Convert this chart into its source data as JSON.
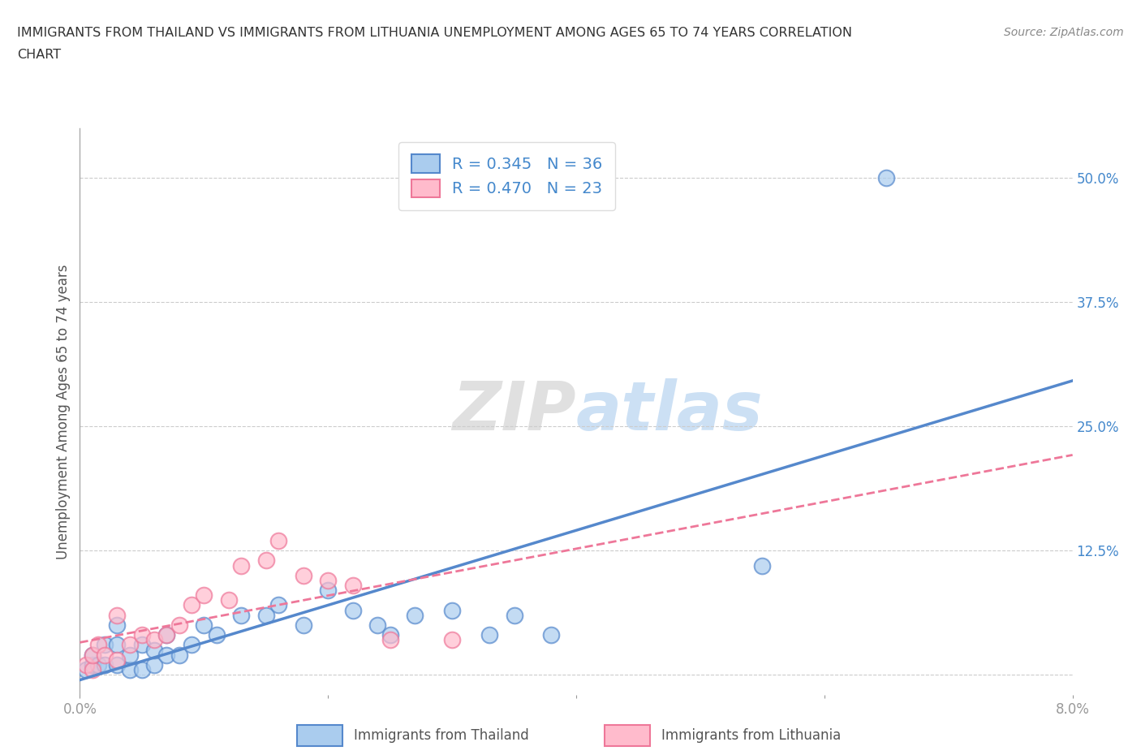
{
  "title": "IMMIGRANTS FROM THAILAND VS IMMIGRANTS FROM LITHUANIA UNEMPLOYMENT AMONG AGES 65 TO 74 YEARS CORRELATION\nCHART",
  "source_text": "Source: ZipAtlas.com",
  "ylabel": "Unemployment Among Ages 65 to 74 years",
  "xlim": [
    0.0,
    0.08
  ],
  "ylim": [
    -0.02,
    0.55
  ],
  "xticks": [
    0.0,
    0.02,
    0.04,
    0.06,
    0.08
  ],
  "ytick_positions": [
    0.0,
    0.125,
    0.25,
    0.375,
    0.5
  ],
  "background_color": "#ffffff",
  "grid_color": "#cccccc",
  "thailand_color": "#aaccee",
  "thailand_edge": "#5588cc",
  "lithuania_color": "#ffbbcc",
  "lithuania_edge": "#ee7799",
  "thailand_R": 0.345,
  "thailand_N": 36,
  "lithuania_R": 0.47,
  "lithuania_N": 23,
  "thailand_x": [
    0.0005,
    0.001,
    0.001,
    0.0015,
    0.002,
    0.002,
    0.003,
    0.003,
    0.003,
    0.004,
    0.004,
    0.005,
    0.005,
    0.006,
    0.006,
    0.007,
    0.007,
    0.008,
    0.009,
    0.01,
    0.011,
    0.013,
    0.015,
    0.016,
    0.018,
    0.02,
    0.022,
    0.024,
    0.025,
    0.027,
    0.03,
    0.033,
    0.035,
    0.038,
    0.055,
    0.065
  ],
  "thailand_y": [
    0.005,
    0.01,
    0.02,
    0.01,
    0.01,
    0.03,
    0.01,
    0.03,
    0.05,
    0.005,
    0.02,
    0.005,
    0.03,
    0.01,
    0.025,
    0.02,
    0.04,
    0.02,
    0.03,
    0.05,
    0.04,
    0.06,
    0.06,
    0.07,
    0.05,
    0.085,
    0.065,
    0.05,
    0.04,
    0.06,
    0.065,
    0.04,
    0.06,
    0.04,
    0.11,
    0.5
  ],
  "lithuania_x": [
    0.0005,
    0.001,
    0.001,
    0.0015,
    0.002,
    0.003,
    0.003,
    0.004,
    0.005,
    0.006,
    0.007,
    0.008,
    0.009,
    0.01,
    0.012,
    0.013,
    0.015,
    0.016,
    0.018,
    0.02,
    0.022,
    0.025,
    0.03
  ],
  "lithuania_y": [
    0.01,
    0.005,
    0.02,
    0.03,
    0.02,
    0.015,
    0.06,
    0.03,
    0.04,
    0.035,
    0.04,
    0.05,
    0.07,
    0.08,
    0.075,
    0.11,
    0.115,
    0.135,
    0.1,
    0.095,
    0.09,
    0.035,
    0.035
  ],
  "legend_box_color": "#aaccee",
  "legend_box2_color": "#ffbbcc"
}
